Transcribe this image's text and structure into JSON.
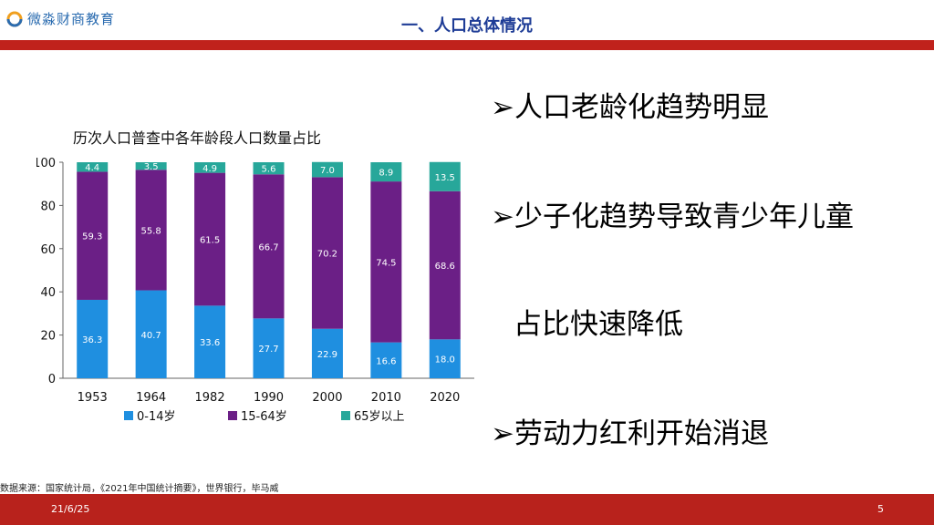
{
  "header": {
    "logo_text": "微淼财商教育",
    "slide_title": "一、人口总体情况"
  },
  "chart_data": {
    "type": "bar",
    "stacked": true,
    "title": "历次人口普查中各年龄段人口数量占比",
    "categories": [
      "1953",
      "1964",
      "1982",
      "1990",
      "2000",
      "2010",
      "2020"
    ],
    "series": [
      {
        "name": "0-14岁",
        "color": "#1f8fe0",
        "values": [
          36.3,
          40.7,
          33.6,
          27.7,
          22.9,
          16.6,
          18.0
        ],
        "labels": [
          "36.3",
          "40.7",
          "33.6",
          "27.7",
          "22.9",
          "16.6",
          "18.0"
        ]
      },
      {
        "name": "15-64岁",
        "color": "#6b1f86",
        "values": [
          59.3,
          55.8,
          61.5,
          66.7,
          70.2,
          74.5,
          68.6
        ],
        "labels": [
          "59.3",
          "55.8",
          "61.5",
          "66.7",
          "70.2",
          "74.5",
          "68.6"
        ]
      },
      {
        "name": "65岁以上",
        "color": "#27a79a",
        "values": [
          4.4,
          3.5,
          4.9,
          5.6,
          7.0,
          8.9,
          13.5
        ],
        "labels": [
          "4.4",
          "3.5",
          "4.9",
          "5.6",
          "7.0",
          "8.9",
          "13.5"
        ]
      }
    ],
    "ylim": [
      0,
      100
    ],
    "yticks": [
      "0",
      "20",
      "40",
      "60",
      "80",
      "100"
    ],
    "xlabel": "",
    "ylabel": "",
    "legend_position": "bottom"
  },
  "bullets": [
    "➢人口老龄化趋势明显",
    "➢少子化趋势导致青少年儿童",
    "占比快速降低",
    "➢劳动力红利开始消退"
  ],
  "source": "数据来源：国家统计局，《2021年中国统计摘要》，世界银行，毕马威",
  "footer": {
    "date": "21/6/25",
    "page": "5"
  },
  "colors": {
    "accent_red": "#c0221c",
    "title_blue": "#1e3c96"
  }
}
